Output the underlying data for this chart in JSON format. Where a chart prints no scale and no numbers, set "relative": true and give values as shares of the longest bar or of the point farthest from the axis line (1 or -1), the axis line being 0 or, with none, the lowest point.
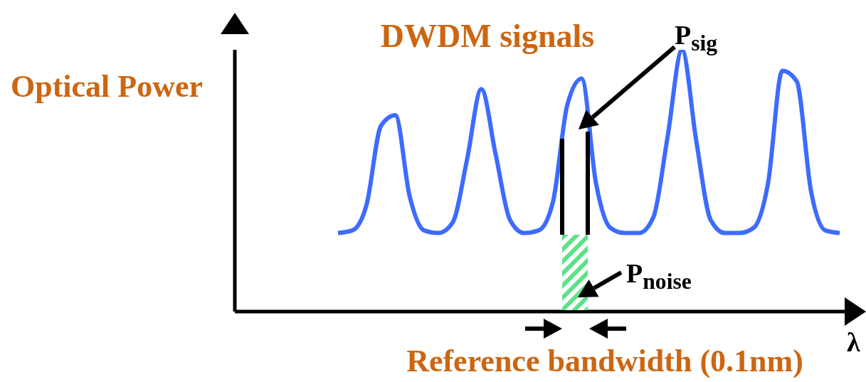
{
  "chart_data": {
    "type": "line",
    "title": "DWDM signals",
    "ylabel": "Optical Power",
    "xlabel": "λ",
    "relative": true,
    "marker": "none",
    "color": "#3d6bff",
    "annotations": [
      "P$_{sig}$",
      "P$_{noise}$",
      "Reference bandwidth (0.1nm)"
    ],
    "categories": [
      null,
      null,
      null,
      null,
      null,
      null,
      null,
      null,
      null,
      null,
      null,
      null,
      null,
      null,
      null,
      null,
      null,
      null,
      null,
      null,
      null,
      null,
      null,
      null,
      null,
      null,
      null,
      null,
      null,
      null,
      null,
      null,
      null,
      null,
      null,
      null
    ],
    "values": [
      0.3,
      0.31,
      0.41,
      0.71,
      0.75,
      0.44,
      0.31,
      0.3,
      0.34,
      0.58,
      0.85,
      0.6,
      0.35,
      0.3,
      0.31,
      0.42,
      0.79,
      0.89,
      0.49,
      0.32,
      0.3,
      0.3,
      0.36,
      0.67,
      1,
      0.65,
      0.35,
      0.3,
      0.3,
      0.32,
      0.49,
      0.92,
      0.88,
      0.46,
      0.31,
      0.3
    ]
  }
}
